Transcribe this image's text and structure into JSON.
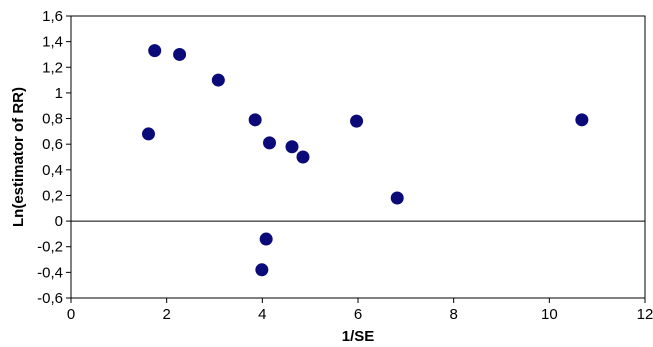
{
  "chart_data": {
    "type": "scatter",
    "xlabel": "1/SE",
    "ylabel": "Ln(estimator of RR)",
    "xlim": [
      0,
      12
    ],
    "ylim": [
      -0.6,
      1.6
    ],
    "x_ticks": [
      0,
      2,
      4,
      6,
      8,
      10,
      12
    ],
    "x_tick_labels": [
      "0",
      "2",
      "4",
      "6",
      "8",
      "10",
      "12"
    ],
    "y_ticks": [
      -0.6,
      -0.4,
      -0.2,
      0,
      0.2,
      0.4,
      0.6,
      0.8,
      1.0,
      1.2,
      1.4,
      1.6
    ],
    "y_tick_labels": [
      "-0,6",
      "-0,4",
      "-0,2",
      "0",
      "0,2",
      "0,4",
      "0,6",
      "0,8",
      "1",
      "1,2",
      "1,4",
      "1,6"
    ],
    "grid": false,
    "marker_color": "#0a0a78",
    "series": [
      {
        "points": [
          {
            "x": 1.62,
            "y": 0.68
          },
          {
            "x": 1.75,
            "y": 1.33
          },
          {
            "x": 2.27,
            "y": 1.3
          },
          {
            "x": 3.08,
            "y": 1.1
          },
          {
            "x": 3.85,
            "y": 0.79
          },
          {
            "x": 4.15,
            "y": 0.61
          },
          {
            "x": 4.62,
            "y": 0.58
          },
          {
            "x": 4.85,
            "y": 0.5
          },
          {
            "x": 5.97,
            "y": 0.78
          },
          {
            "x": 6.82,
            "y": 0.18
          },
          {
            "x": 10.68,
            "y": 0.79
          },
          {
            "x": 4.08,
            "y": -0.14
          },
          {
            "x": 3.99,
            "y": -0.38
          }
        ]
      }
    ]
  }
}
